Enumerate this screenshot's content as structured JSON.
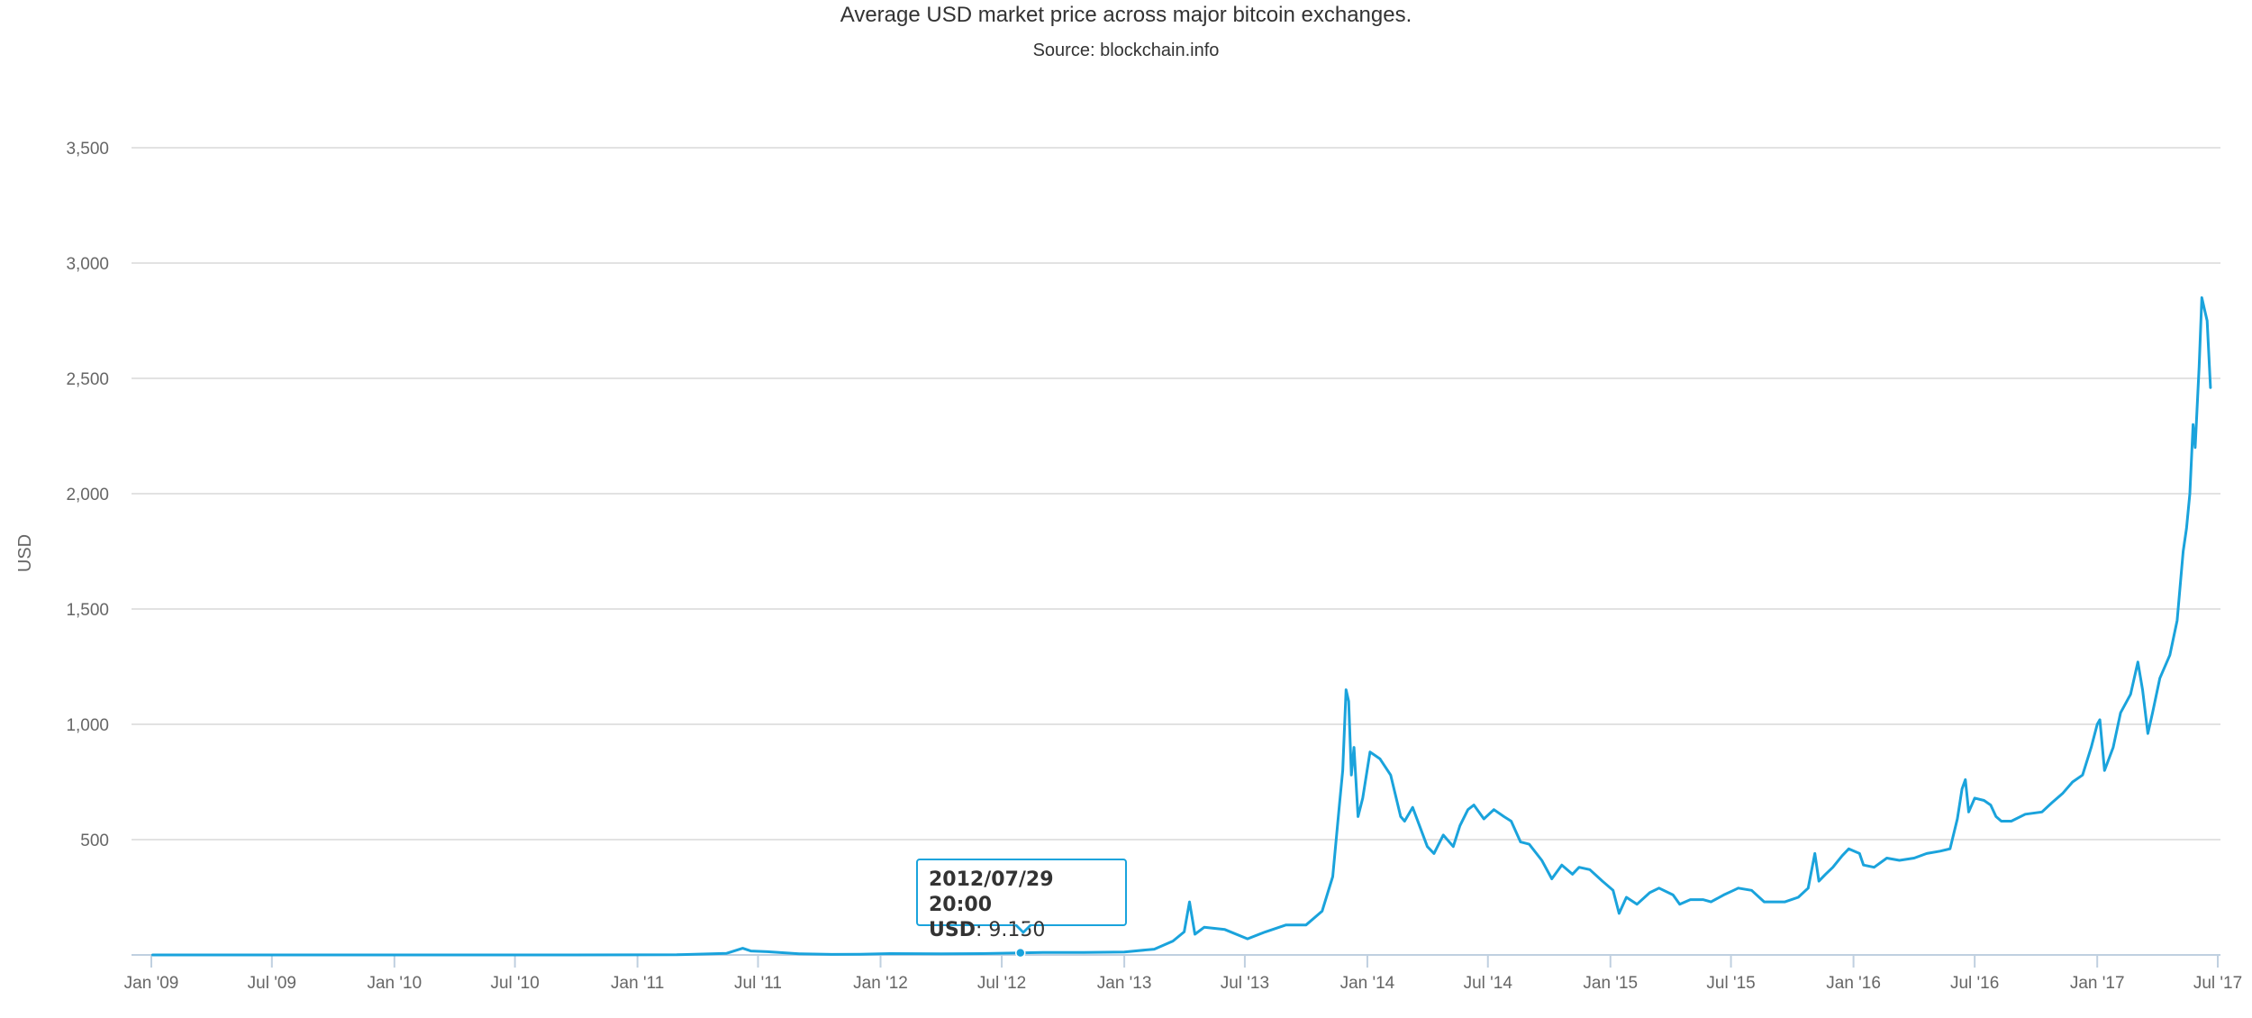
{
  "chart_data": {
    "type": "line",
    "title": "Average USD market price across major bitcoin exchanges.",
    "subtitle": "Source: blockchain.info",
    "xlabel": "",
    "ylabel": "USD",
    "ylim": [
      0,
      3500
    ],
    "y_ticks": [
      {
        "value": 500,
        "label": "500"
      },
      {
        "value": 1000,
        "label": "1,000"
      },
      {
        "value": 1500,
        "label": "1,500"
      },
      {
        "value": 2000,
        "label": "2,000"
      },
      {
        "value": 2500,
        "label": "2,500"
      },
      {
        "value": 3000,
        "label": "3,000"
      },
      {
        "value": 3500,
        "label": "3,500"
      }
    ],
    "x_range": [
      "2009-01-01",
      "2017-07-01"
    ],
    "x_ticks": [
      {
        "date": "2009-01-01",
        "label": "Jan '09"
      },
      {
        "date": "2009-07-01",
        "label": "Jul '09"
      },
      {
        "date": "2010-01-01",
        "label": "Jan '10"
      },
      {
        "date": "2010-07-01",
        "label": "Jul '10"
      },
      {
        "date": "2011-01-01",
        "label": "Jan '11"
      },
      {
        "date": "2011-07-01",
        "label": "Jul '11"
      },
      {
        "date": "2012-01-01",
        "label": "Jan '12"
      },
      {
        "date": "2012-07-01",
        "label": "Jul '12"
      },
      {
        "date": "2013-01-01",
        "label": "Jan '13"
      },
      {
        "date": "2013-07-01",
        "label": "Jul '13"
      },
      {
        "date": "2014-01-01",
        "label": "Jan '14"
      },
      {
        "date": "2014-07-01",
        "label": "Jul '14"
      },
      {
        "date": "2015-01-01",
        "label": "Jan '15"
      },
      {
        "date": "2015-07-01",
        "label": "Jul '15"
      },
      {
        "date": "2016-01-01",
        "label": "Jan '16"
      },
      {
        "date": "2016-07-01",
        "label": "Jul '16"
      },
      {
        "date": "2017-01-01",
        "label": "Jan '17"
      },
      {
        "date": "2017-07-01",
        "label": "Jul '17"
      }
    ],
    "grid": true,
    "legend": "none",
    "line_color": "#1aa3dc",
    "series": [
      {
        "x": [
          "2009-01-03",
          "2009-07-01",
          "2010-01-01",
          "2010-07-18",
          "2011-01-01",
          "2011-03-01",
          "2011-05-15",
          "2011-06-08",
          "2011-06-20",
          "2011-07-15",
          "2011-09-01",
          "2011-10-20",
          "2011-12-01",
          "2012-01-15",
          "2012-04-01",
          "2012-06-01",
          "2012-07-29",
          "2012-09-01",
          "2012-11-01",
          "2013-01-01",
          "2013-02-15",
          "2013-03-15",
          "2013-04-01",
          "2013-04-09",
          "2013-04-17",
          "2013-05-01",
          "2013-06-01",
          "2013-07-05",
          "2013-08-01",
          "2013-09-01",
          "2013-10-01",
          "2013-10-25",
          "2013-11-10",
          "2013-11-20",
          "2013-11-25",
          "2013-11-30",
          "2013-12-04",
          "2013-12-08",
          "2013-12-12",
          "2013-12-18",
          "2013-12-25",
          "2014-01-05",
          "2014-01-20",
          "2014-02-05",
          "2014-02-20",
          "2014-02-26",
          "2014-03-10",
          "2014-04-01",
          "2014-04-11",
          "2014-04-25",
          "2014-05-10",
          "2014-05-20",
          "2014-06-01",
          "2014-06-10",
          "2014-06-25",
          "2014-07-10",
          "2014-07-25",
          "2014-08-05",
          "2014-08-19",
          "2014-09-01",
          "2014-09-20",
          "2014-10-05",
          "2014-10-20",
          "2014-11-05",
          "2014-11-15",
          "2014-12-01",
          "2014-12-20",
          "2015-01-05",
          "2015-01-14",
          "2015-01-25",
          "2015-02-10",
          "2015-03-01",
          "2015-03-15",
          "2015-04-05",
          "2015-04-15",
          "2015-05-01",
          "2015-05-20",
          "2015-06-01",
          "2015-06-20",
          "2015-07-05",
          "2015-07-12",
          "2015-08-01",
          "2015-08-20",
          "2015-09-05",
          "2015-09-20",
          "2015-10-10",
          "2015-10-25",
          "2015-11-04",
          "2015-11-10",
          "2015-11-20",
          "2015-12-01",
          "2015-12-15",
          "2015-12-25",
          "2016-01-10",
          "2016-01-16",
          "2016-02-01",
          "2016-02-20",
          "2016-03-10",
          "2016-04-01",
          "2016-04-20",
          "2016-05-10",
          "2016-05-25",
          "2016-06-05",
          "2016-06-12",
          "2016-06-17",
          "2016-06-22",
          "2016-07-01",
          "2016-07-15",
          "2016-07-25",
          "2016-08-02",
          "2016-08-10",
          "2016-08-25",
          "2016-09-15",
          "2016-10-10",
          "2016-10-25",
          "2016-11-10",
          "2016-11-25",
          "2016-12-10",
          "2016-12-23",
          "2017-01-01",
          "2017-01-05",
          "2017-01-12",
          "2017-01-25",
          "2017-02-05",
          "2017-02-20",
          "2017-03-03",
          "2017-03-10",
          "2017-03-18",
          "2017-03-25",
          "2017-04-05",
          "2017-04-20",
          "2017-05-01",
          "2017-05-10",
          "2017-05-15",
          "2017-05-20",
          "2017-05-25",
          "2017-05-28",
          "2017-06-03",
          "2017-06-07",
          "2017-06-11",
          "2017-06-15",
          "2017-06-20"
        ],
        "values": [
          0,
          0,
          0,
          0.1,
          0.3,
          0.9,
          7,
          29,
          17,
          14,
          5,
          2.5,
          3,
          6,
          5,
          6,
          9.15,
          11,
          11,
          13,
          25,
          60,
          100,
          230,
          90,
          120,
          110,
          70,
          100,
          130,
          130,
          190,
          340,
          650,
          800,
          1150,
          1100,
          780,
          900,
          600,
          680,
          880,
          850,
          780,
          600,
          580,
          640,
          470,
          440,
          520,
          470,
          560,
          630,
          650,
          590,
          630,
          600,
          580,
          490,
          480,
          410,
          330,
          390,
          350,
          380,
          370,
          320,
          280,
          180,
          250,
          220,
          270,
          290,
          260,
          220,
          240,
          240,
          230,
          260,
          280,
          290,
          280,
          230,
          230,
          230,
          250,
          290,
          440,
          320,
          350,
          380,
          430,
          460,
          440,
          390,
          380,
          420,
          410,
          420,
          440,
          450,
          460,
          590,
          720,
          760,
          620,
          680,
          670,
          650,
          600,
          580,
          580,
          610,
          620,
          660,
          700,
          750,
          780,
          900,
          1000,
          1020,
          800,
          900,
          1050,
          1130,
          1270,
          1150,
          960,
          1050,
          1200,
          1300,
          1450,
          1750,
          1850,
          2000,
          2300,
          2200,
          2550,
          2850,
          2800,
          2750,
          2460
        ]
      }
    ],
    "tooltip": {
      "date": "2012/07/29 20:00",
      "label": "USD",
      "value": "9.150",
      "x": "2012-07-29",
      "y": 9.15
    }
  }
}
